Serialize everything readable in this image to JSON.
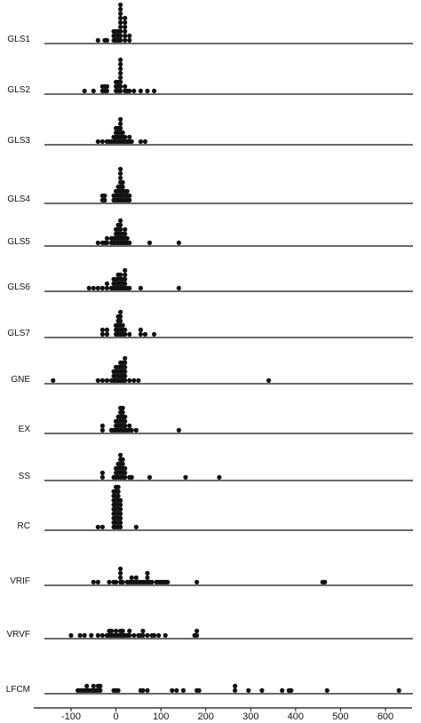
{
  "chart_data": {
    "type": "scatter",
    "title": "",
    "xlabel": "",
    "ylabel": "",
    "xlim": [
      -150,
      650
    ],
    "x_ticks": [
      "-100",
      "0",
      "100",
      "200",
      "300",
      "400",
      "500",
      "600"
    ],
    "x_tick_values": [
      -100,
      0,
      100,
      200,
      300,
      400,
      500,
      600
    ],
    "grid": false,
    "marker_color": "#111111",
    "series": [
      {
        "name": "GLS1",
        "values": [
          -40,
          -25,
          -20,
          -5,
          -5,
          -5,
          0,
          0,
          0,
          5,
          5,
          5,
          10,
          10,
          10,
          10,
          10,
          10,
          10,
          10,
          10,
          20,
          20,
          20,
          20,
          20,
          20,
          30,
          30
        ]
      },
      {
        "name": "GLS2",
        "values": [
          -70,
          -50,
          -30,
          -30,
          -25,
          -25,
          -20,
          -20,
          0,
          0,
          0,
          5,
          5,
          5,
          10,
          10,
          10,
          10,
          10,
          10,
          10,
          10,
          20,
          20,
          25,
          30,
          40,
          55,
          70,
          85
        ]
      },
      {
        "name": "GLS3",
        "values": [
          -40,
          -30,
          -20,
          -15,
          -10,
          -5,
          -5,
          0,
          0,
          0,
          0,
          5,
          5,
          5,
          5,
          10,
          10,
          10,
          10,
          10,
          10,
          15,
          15,
          15,
          20,
          20,
          25,
          30,
          30,
          35,
          55,
          65
        ]
      },
      {
        "name": "GLS4",
        "values": [
          -30,
          -30,
          -25,
          -25,
          -5,
          -5,
          0,
          0,
          0,
          5,
          5,
          5,
          5,
          10,
          10,
          10,
          10,
          10,
          10,
          10,
          10,
          15,
          15,
          15,
          15,
          15,
          20,
          20,
          20,
          25,
          25,
          25,
          30,
          30
        ]
      },
      {
        "name": "GLS5",
        "values": [
          -40,
          -30,
          -25,
          -20,
          -20,
          -10,
          -10,
          -5,
          -5,
          0,
          0,
          0,
          0,
          5,
          5,
          5,
          5,
          5,
          10,
          10,
          10,
          10,
          10,
          10,
          15,
          15,
          15,
          20,
          20,
          20,
          20,
          25,
          25,
          30,
          75,
          140
        ]
      },
      {
        "name": "GLS6",
        "values": [
          -60,
          -50,
          -40,
          -30,
          -20,
          -20,
          -10,
          -5,
          -5,
          -5,
          0,
          0,
          0,
          5,
          5,
          5,
          5,
          10,
          10,
          10,
          10,
          15,
          15,
          15,
          20,
          20,
          20,
          20,
          20,
          25,
          30,
          55,
          140
        ]
      },
      {
        "name": "GLS7",
        "values": [
          -30,
          -30,
          -20,
          -20,
          0,
          0,
          0,
          5,
          5,
          5,
          5,
          5,
          10,
          10,
          10,
          10,
          10,
          10,
          15,
          15,
          15,
          20,
          20,
          30,
          55,
          55,
          65,
          85
        ]
      },
      {
        "name": "GNE",
        "values": [
          -140,
          -40,
          -30,
          -20,
          -10,
          -5,
          -5,
          -5,
          0,
          0,
          0,
          0,
          5,
          5,
          5,
          5,
          10,
          10,
          10,
          10,
          10,
          15,
          15,
          15,
          15,
          15,
          20,
          20,
          20,
          20,
          20,
          20,
          30,
          40,
          50,
          340
        ]
      },
      {
        "name": "EX",
        "values": [
          -30,
          -30,
          -10,
          -5,
          0,
          0,
          0,
          5,
          5,
          5,
          5,
          10,
          10,
          10,
          10,
          10,
          10,
          15,
          15,
          15,
          15,
          15,
          15,
          20,
          20,
          20,
          20,
          25,
          30,
          30,
          35,
          45,
          140
        ]
      },
      {
        "name": "SS",
        "values": [
          -30,
          -30,
          -5,
          0,
          0,
          0,
          5,
          5,
          5,
          5,
          10,
          10,
          10,
          10,
          10,
          10,
          15,
          15,
          15,
          15,
          15,
          20,
          20,
          20,
          30,
          35,
          75,
          155,
          230
        ]
      },
      {
        "name": "RC",
        "values": [
          -40,
          -30,
          -5,
          -5,
          -5,
          -5,
          -5,
          -5,
          -5,
          -5,
          -5,
          0,
          0,
          0,
          0,
          0,
          0,
          0,
          0,
          0,
          0,
          5,
          5,
          5,
          5,
          5,
          5,
          5,
          5,
          5,
          5,
          10,
          10,
          10,
          10,
          10,
          10,
          10,
          45
        ]
      },
      {
        "name": "VRIF",
        "values": [
          -50,
          -40,
          -15,
          -5,
          0,
          10,
          10,
          10,
          10,
          15,
          25,
          30,
          35,
          35,
          40,
          45,
          45,
          50,
          55,
          60,
          65,
          70,
          70,
          70,
          75,
          80,
          90,
          95,
          100,
          105,
          110,
          115,
          180,
          460,
          465
        ]
      },
      {
        "name": "VRVF",
        "values": [
          -100,
          -80,
          -70,
          -55,
          -40,
          -30,
          -20,
          -15,
          -15,
          -10,
          -10,
          -5,
          0,
          0,
          5,
          10,
          10,
          15,
          15,
          20,
          25,
          30,
          30,
          40,
          50,
          55,
          60,
          60,
          70,
          80,
          85,
          95,
          110,
          175,
          180,
          180
        ]
      },
      {
        "name": "LFCM",
        "values": [
          -85,
          -80,
          -75,
          -70,
          -65,
          -65,
          -60,
          -55,
          -50,
          -50,
          -45,
          -40,
          -40,
          -35,
          -35,
          -5,
          0,
          5,
          55,
          60,
          70,
          125,
          135,
          150,
          180,
          185,
          265,
          265,
          295,
          325,
          370,
          385,
          390,
          470,
          630
        ]
      }
    ]
  }
}
